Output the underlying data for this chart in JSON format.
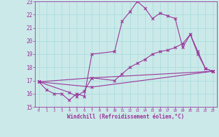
{
  "xlabel": "Windchill (Refroidissement éolien,°C)",
  "xlim": [
    -0.5,
    23.5
  ],
  "ylim": [
    15,
    23
  ],
  "yticks": [
    15,
    16,
    17,
    18,
    19,
    20,
    21,
    22,
    23
  ],
  "xticks": [
    0,
    1,
    2,
    3,
    4,
    5,
    6,
    7,
    8,
    9,
    10,
    11,
    12,
    13,
    14,
    15,
    16,
    17,
    18,
    19,
    20,
    21,
    22,
    23
  ],
  "bg_color": "#cbe9e9",
  "line_color": "#993399",
  "grid_color": "#aadddd",
  "lines": [
    {
      "x": [
        0,
        1,
        2,
        3,
        4,
        5,
        6,
        7,
        10,
        11,
        12,
        13,
        14,
        15,
        16,
        17,
        18,
        19,
        20,
        21,
        22,
        23
      ],
      "y": [
        16.9,
        16.3,
        16.0,
        16.0,
        15.5,
        16.0,
        15.8,
        19.0,
        19.2,
        21.5,
        22.2,
        23.0,
        22.5,
        21.7,
        22.1,
        21.9,
        21.7,
        19.5,
        20.5,
        19.2,
        17.9,
        17.7
      ]
    },
    {
      "x": [
        0,
        4,
        5,
        6,
        7,
        10,
        11,
        12,
        13,
        14,
        15,
        16,
        17,
        18,
        19,
        20,
        21,
        22,
        23
      ],
      "y": [
        16.9,
        16.1,
        15.8,
        16.2,
        17.2,
        17.0,
        17.5,
        18.0,
        18.3,
        18.6,
        19.0,
        19.2,
        19.3,
        19.5,
        19.8,
        20.5,
        19.0,
        17.9,
        17.7
      ]
    },
    {
      "x": [
        0,
        7,
        23
      ],
      "y": [
        16.9,
        17.2,
        17.7
      ]
    },
    {
      "x": [
        0,
        7,
        23
      ],
      "y": [
        16.9,
        16.5,
        17.7
      ]
    }
  ]
}
